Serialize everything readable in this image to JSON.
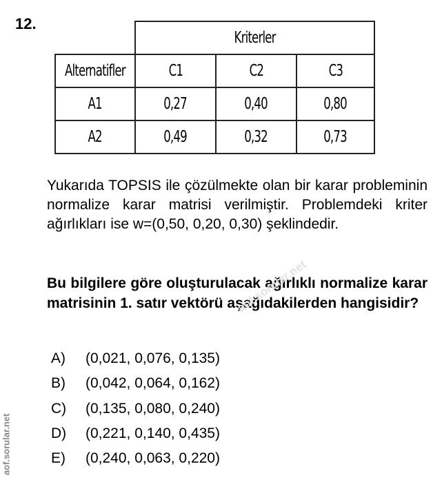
{
  "question_number": "12.",
  "table": {
    "group_header": "Kriterler",
    "row_header": "Alternatifler",
    "columns": [
      "C1",
      "C2",
      "C3"
    ],
    "rows": [
      {
        "label": "A1",
        "values": [
          "0,27",
          "0,40",
          "0,80"
        ]
      },
      {
        "label": "A2",
        "values": [
          "0,49",
          "0,32",
          "0,73"
        ]
      }
    ]
  },
  "paragraph": "Yukarıda TOPSIS ile çözülmekte olan bir karar probleminin normalize karar matrisi verilmiştir. Problemdeki kriter ağırlıkları ise w=(0,50, 0,20, 0,30) şeklindedir.",
  "question": "Bu bilgilere göre oluşturulacak ağırlıklı normalize karar matrisinin 1. satır vektörü aşağıdakilerden hangisidir?",
  "options": [
    {
      "letter": "A)",
      "text": "(0,021, 0,076, 0,135)"
    },
    {
      "letter": "B)",
      "text": "(0,042, 0,064, 0,162)"
    },
    {
      "letter": "C)",
      "text": "(0,135, 0,080, 0,240)"
    },
    {
      "letter": "D)",
      "text": "(0,221, 0,140, 0,435)"
    },
    {
      "letter": "E)",
      "text": "(0,240, 0,063, 0,220)"
    }
  ],
  "watermark": "aof.sorular.net",
  "side_watermark": "aof.sorular.net"
}
